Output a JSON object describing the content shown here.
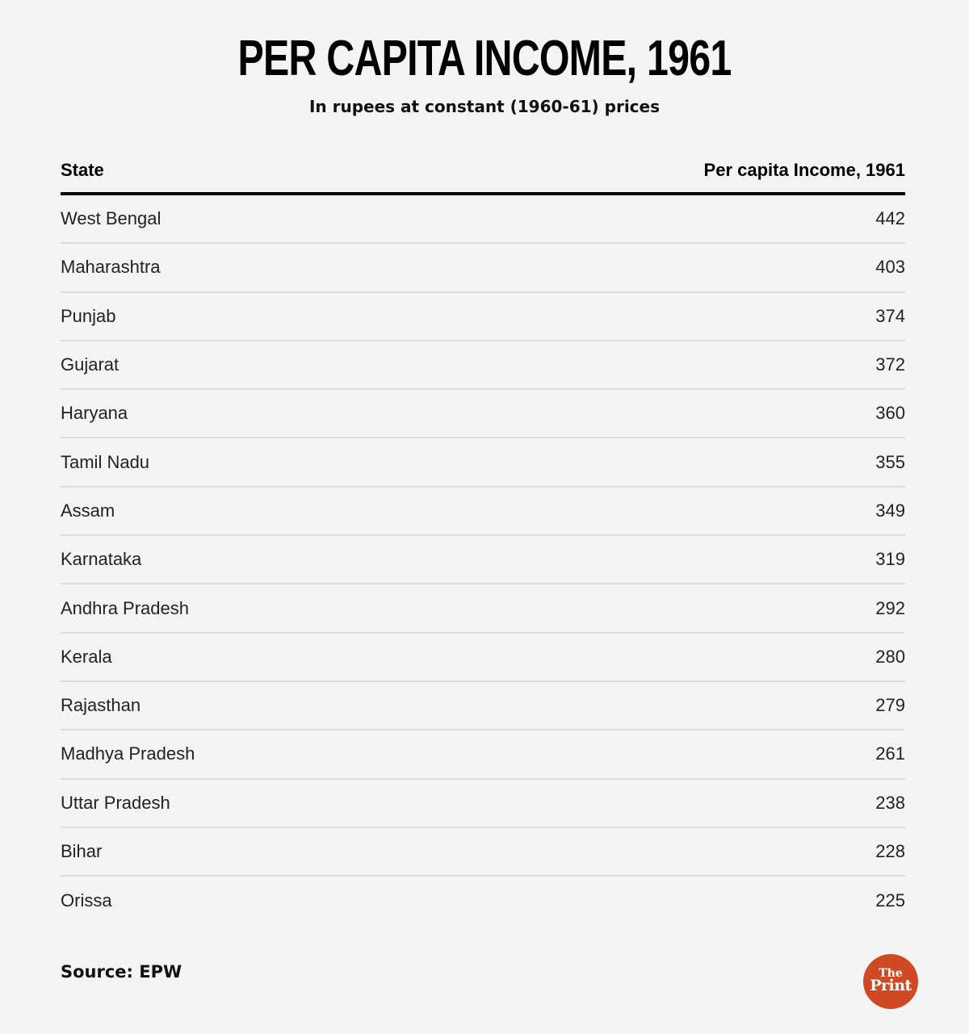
{
  "header": {
    "title": "PER CAPITA INCOME, 1961",
    "subtitle": "In rupees at constant (1960-61) prices"
  },
  "table": {
    "columns": [
      "State",
      "Per capita Income, 1961"
    ],
    "rows": [
      {
        "state": "West Bengal",
        "value": "442"
      },
      {
        "state": "Maharashtra",
        "value": "403"
      },
      {
        "state": "Punjab",
        "value": "374"
      },
      {
        "state": "Gujarat",
        "value": "372"
      },
      {
        "state": "Haryana",
        "value": "360"
      },
      {
        "state": "Tamil Nadu",
        "value": "355"
      },
      {
        "state": "Assam",
        "value": "349"
      },
      {
        "state": "Karnataka",
        "value": "319"
      },
      {
        "state": "Andhra Pradesh",
        "value": "292"
      },
      {
        "state": "Kerala",
        "value": "280"
      },
      {
        "state": "Rajasthan",
        "value": "279"
      },
      {
        "state": "Madhya Pradesh",
        "value": "261"
      },
      {
        "state": "Uttar Pradesh",
        "value": "238"
      },
      {
        "state": "Bihar",
        "value": "228"
      },
      {
        "state": "Orissa",
        "value": "225"
      }
    ]
  },
  "footer": {
    "source": "Source: EPW",
    "logo": {
      "line1": "The",
      "line2": "Print",
      "color": "#cf4a22"
    }
  },
  "colors": {
    "background": "#f4f4f4",
    "header_rule": "#000000",
    "row_divider": "#dcdcdc",
    "logo": "#cf4a22"
  },
  "chart_data": {
    "type": "table",
    "title": "PER CAPITA INCOME, 1961",
    "subtitle": "In rupees at constant (1960-61) prices",
    "columns": [
      "State",
      "Per capita Income, 1961"
    ],
    "categories": [
      "West Bengal",
      "Maharashtra",
      "Punjab",
      "Gujarat",
      "Haryana",
      "Tamil Nadu",
      "Assam",
      "Karnataka",
      "Andhra Pradesh",
      "Kerala",
      "Rajasthan",
      "Madhya Pradesh",
      "Uttar Pradesh",
      "Bihar",
      "Orissa"
    ],
    "values": [
      442,
      403,
      374,
      372,
      360,
      355,
      349,
      319,
      292,
      280,
      279,
      261,
      238,
      228,
      225
    ],
    "source": "Source: EPW"
  }
}
